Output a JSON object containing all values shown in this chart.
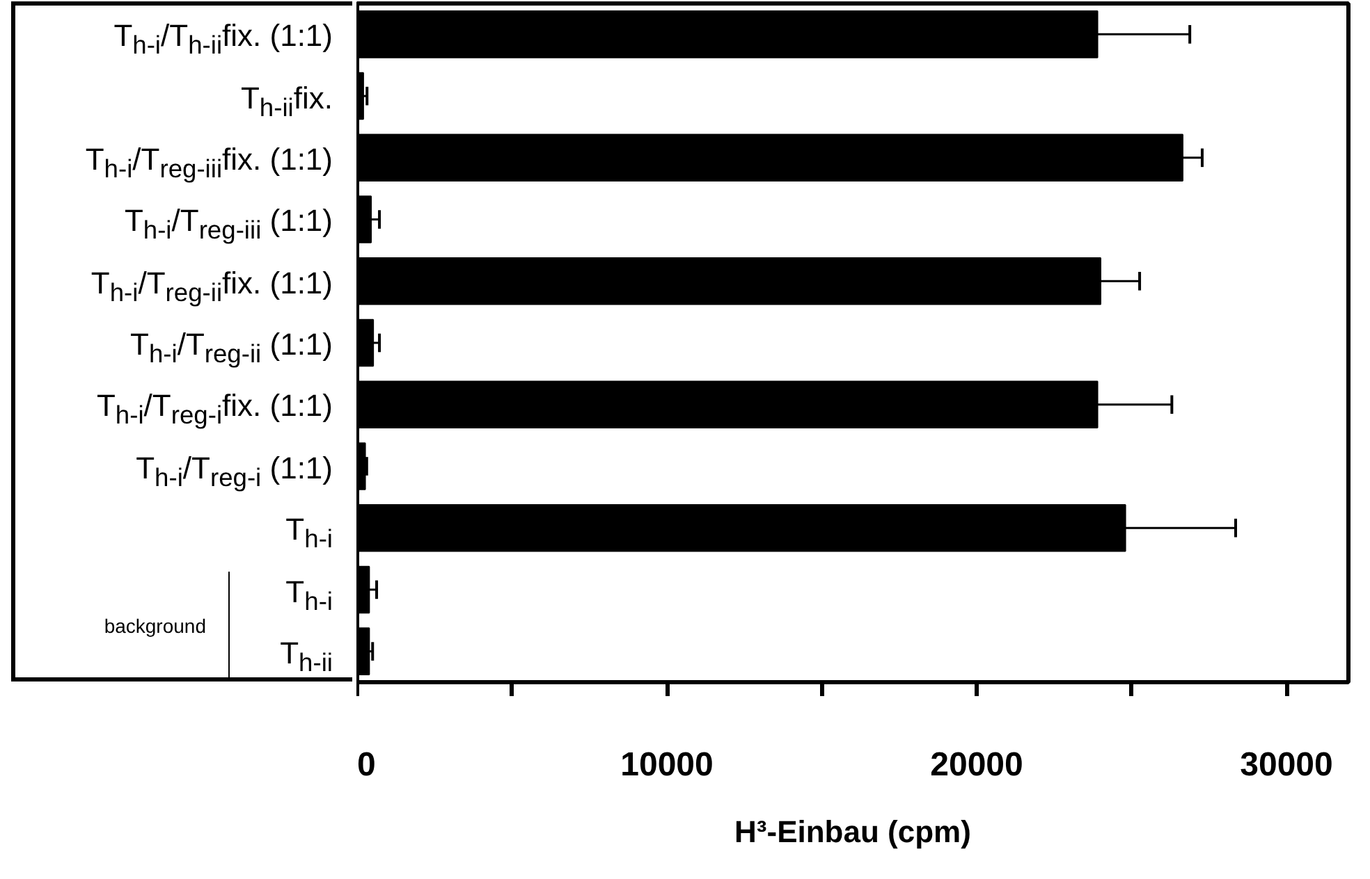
{
  "chart_data": {
    "type": "bar",
    "orientation": "horizontal",
    "xlabel": "H³-Einbau (cpm)",
    "categories": [
      "T$_{h-i}$/T$_{h-ii}$fix. (1:1)",
      "T$_{h-ii}$fix.",
      "T$_{h-i}$/T$_{reg-iii}$fix. (1:1)",
      "T$_{h-i}$/T$_{reg-iii}$ (1:1)",
      "T$_{h-i}$/T$_{reg-ii}$fix. (1:1)",
      "T$_{h-i}$/T$_{reg-ii}$ (1:1)",
      "T$_{h-i}$/T$_{reg-i}$fix. (1:1)",
      "T$_{h-i}$/T$_{reg-i}$ (1:1)",
      "T$_{h-i}$",
      "T$_{h-i}$",
      "T$_{h-ii}$"
    ],
    "values": [
      23900,
      200,
      26650,
      450,
      24000,
      520,
      23900,
      260,
      24800,
      390,
      390
    ],
    "errors": [
      2980,
      120,
      630,
      270,
      1260,
      200,
      2400,
      50,
      3560,
      240,
      110
    ],
    "color": "#000000",
    "xlim": [
      0,
      32000
    ],
    "xticks": [
      0,
      {
        "value": 5000,
        "label": null
      },
      10000,
      {
        "value": 15000,
        "label": null
      },
      20000,
      {
        "value": 25000,
        "label": null
      },
      30000
    ],
    "annotations": [
      "background"
    ],
    "grid": false
  }
}
